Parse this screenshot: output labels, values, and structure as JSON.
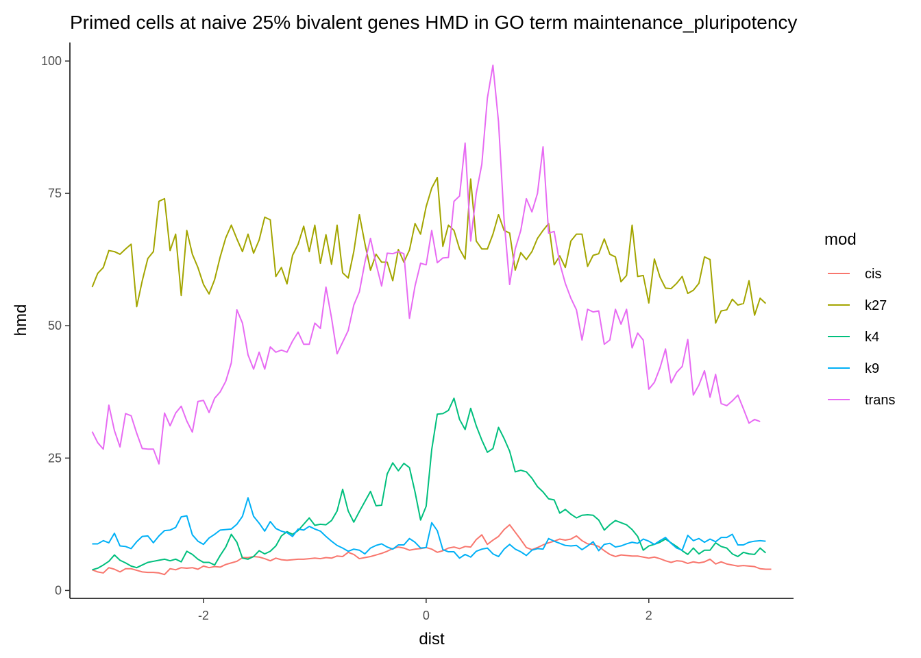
{
  "chart_data": {
    "type": "line",
    "title": "Primed cells at naive 25% bivalent genes HMD in GO term maintenance_pluripotency",
    "xlabel": "dist",
    "ylabel": "hmd",
    "xlim": [
      -3.2,
      3.3
    ],
    "ylim": [
      -1.5,
      103.5
    ],
    "x_ticks": [
      -2,
      0,
      2
    ],
    "y_ticks": [
      0,
      25,
      50,
      75,
      100
    ],
    "x_tick_labels": [
      "-2",
      "0",
      "2"
    ],
    "y_tick_labels": [
      "0",
      "25",
      "50",
      "75",
      "100"
    ],
    "grid": false,
    "legend": {
      "title": "mod",
      "position": "right"
    },
    "x_start": -3.0,
    "x_step": 0.05,
    "series": [
      {
        "name": "cis",
        "color": "#F8766D",
        "values": [
          3.9,
          3.5,
          3.3,
          4.3,
          4.0,
          3.5,
          4.1,
          4.1,
          3.8,
          3.5,
          3.4,
          3.4,
          3.3,
          3.0,
          4.1,
          3.9,
          4.3,
          4.2,
          4.3,
          4.0,
          4.6,
          4.3,
          4.5,
          4.4,
          4.9,
          5.2,
          5.5,
          6.2,
          6.2,
          6.4,
          6.3,
          6.0,
          5.6,
          6.1,
          5.8,
          5.7,
          5.8,
          5.9,
          5.9,
          6.0,
          6.1,
          6.0,
          6.2,
          6.1,
          6.5,
          6.4,
          7.2,
          6.8,
          6.0,
          6.2,
          6.4,
          6.7,
          7.0,
          7.4,
          7.9,
          8.2,
          8.0,
          7.6,
          7.8,
          7.9,
          8.1,
          7.8,
          7.2,
          7.5,
          8.0,
          8.2,
          7.9,
          8.3,
          8.2,
          9.6,
          10.5,
          8.7,
          9.5,
          10.2,
          11.5,
          12.4,
          11.0,
          9.6,
          8.1,
          7.7,
          8.1,
          8.6,
          9.0,
          9.3,
          9.7,
          9.5,
          9.7,
          10.3,
          9.4,
          8.8,
          8.7,
          8.3,
          7.5,
          6.8,
          6.4,
          6.7,
          6.6,
          6.5,
          6.5,
          6.3,
          6.1,
          6.3,
          6.0,
          5.6,
          5.3,
          5.6,
          5.5,
          5.1,
          5.4,
          5.2,
          5.4,
          5.9,
          5.0,
          5.4,
          5.0,
          4.8,
          4.6,
          4.7,
          4.6,
          4.5,
          4.1,
          4.0,
          4.0
        ]
      },
      {
        "name": "k27",
        "color": "#A3A500",
        "values": [
          57.3,
          59.9,
          61.0,
          64.2,
          64.0,
          63.5,
          64.5,
          65.4,
          53.6,
          58.5,
          62.7,
          64.0,
          73.5,
          74.0,
          64.2,
          67.3,
          55.7,
          68.0,
          63.5,
          61.0,
          57.8,
          56.0,
          58.7,
          63.0,
          66.6,
          69.0,
          66.4,
          64.0,
          67.3,
          63.7,
          66.2,
          70.5,
          70.0,
          59.3,
          61.0,
          57.9,
          63.3,
          65.4,
          68.8,
          64.0,
          69.0,
          61.8,
          67.2,
          61.6,
          69.0,
          60.0,
          59.0,
          64.0,
          71.0,
          65.5,
          60.5,
          63.5,
          62.0,
          62.0,
          58.5,
          64.4,
          62.0,
          64.3,
          69.3,
          67.3,
          72.5,
          76.0,
          78.0,
          65.0,
          69.0,
          68.0,
          64.5,
          62.6,
          77.7,
          66.0,
          64.5,
          64.5,
          67.3,
          71.0,
          68.0,
          67.5,
          60.5,
          63.8,
          62.5,
          64.0,
          66.5,
          68.0,
          69.3,
          61.5,
          63.2,
          61.0,
          66.0,
          67.3,
          67.3,
          61.2,
          63.3,
          63.6,
          66.4,
          63.5,
          63.0,
          58.3,
          59.5,
          69.0,
          59.3,
          59.5,
          54.3,
          62.6,
          59.2,
          57.1,
          57.0,
          58.0,
          59.3,
          56.1,
          56.7,
          58.0,
          63.0,
          62.5,
          50.5,
          52.8,
          53.0,
          55.0,
          53.9,
          54.2,
          58.5,
          52.0,
          55.2,
          54.2
        ]
      },
      {
        "name": "k4",
        "color": "#00BF7D",
        "values": [
          3.9,
          4.2,
          4.8,
          5.5,
          6.7,
          5.7,
          5.2,
          4.6,
          4.3,
          4.8,
          5.3,
          5.5,
          5.7,
          5.9,
          5.6,
          5.9,
          5.4,
          7.4,
          6.8,
          5.9,
          5.3,
          5.3,
          4.8,
          6.6,
          8.2,
          10.6,
          9.1,
          6.1,
          5.9,
          6.4,
          7.5,
          6.9,
          7.4,
          8.4,
          10.3,
          11.1,
          10.6,
          11.3,
          12.5,
          13.7,
          12.3,
          12.5,
          12.4,
          13.2,
          15.0,
          19.1,
          15.0,
          12.9,
          14.9,
          16.8,
          18.7,
          16.0,
          16.1,
          22.0,
          24.1,
          22.6,
          24.0,
          23.2,
          18.6,
          13.3,
          15.9,
          26.6,
          33.3,
          33.4,
          34.0,
          36.3,
          32.3,
          30.4,
          34.4,
          31.1,
          28.4,
          26.1,
          26.8,
          30.8,
          28.7,
          26.3,
          22.4,
          22.7,
          22.4,
          21.2,
          19.6,
          18.6,
          17.3,
          17.1,
          14.6,
          15.3,
          14.4,
          13.7,
          14.2,
          14.3,
          14.2,
          13.3,
          11.4,
          12.4,
          13.2,
          12.8,
          12.4,
          11.5,
          10.2,
          7.6,
          8.4,
          8.7,
          9.1,
          9.7,
          9.0,
          8.3,
          7.5,
          6.8,
          8.0,
          6.9,
          7.6,
          7.6,
          9.0,
          8.3,
          8.0,
          6.9,
          6.4,
          7.2,
          6.9,
          6.8,
          8.0,
          7.1
        ]
      },
      {
        "name": "k9",
        "color": "#00B0F6",
        "values": [
          8.8,
          8.8,
          9.4,
          9.0,
          10.8,
          8.4,
          8.3,
          7.9,
          9.2,
          10.2,
          10.3,
          9.0,
          10.3,
          11.3,
          11.4,
          11.9,
          13.9,
          14.1,
          10.5,
          9.3,
          8.7,
          9.9,
          10.6,
          11.4,
          11.5,
          11.6,
          12.5,
          14.0,
          17.5,
          14.0,
          12.7,
          11.2,
          13.0,
          11.7,
          11.2,
          10.9,
          10.2,
          11.6,
          11.4,
          12.1,
          11.6,
          11.2,
          10.2,
          9.3,
          8.5,
          8.0,
          7.4,
          7.8,
          7.6,
          6.9,
          8.0,
          8.5,
          8.8,
          8.2,
          7.8,
          8.6,
          8.6,
          9.8,
          9.1,
          8.0,
          8.1,
          12.8,
          11.3,
          7.7,
          7.3,
          7.3,
          6.1,
          6.8,
          6.3,
          7.4,
          7.8,
          8.0,
          6.9,
          6.4,
          7.8,
          8.7,
          7.8,
          7.3,
          6.6,
          7.6,
          7.9,
          7.8,
          9.8,
          9.3,
          8.9,
          8.5,
          8.4,
          8.5,
          7.7,
          8.4,
          9.2,
          7.5,
          8.7,
          8.9,
          8.2,
          8.4,
          8.8,
          9.1,
          8.9,
          9.7,
          9.3,
          8.7,
          9.4,
          10.0,
          8.9,
          8.0,
          7.6,
          10.4,
          9.4,
          9.8,
          9.1,
          9.7,
          9.2,
          10.0,
          10.0,
          10.6,
          8.6,
          8.6,
          9.1,
          9.3,
          9.4,
          9.3
        ]
      },
      {
        "name": "trans",
        "color": "#E76BF3",
        "values": [
          30.0,
          27.9,
          26.7,
          35.0,
          30.2,
          27.1,
          33.4,
          33.0,
          29.7,
          26.8,
          26.7,
          26.7,
          23.9,
          33.5,
          31.1,
          33.5,
          34.8,
          32.0,
          29.9,
          35.7,
          35.9,
          33.6,
          36.3,
          37.5,
          39.5,
          43.0,
          53.0,
          50.5,
          44.5,
          41.8,
          45.0,
          41.8,
          46.0,
          45.0,
          45.4,
          45.0,
          47.1,
          48.8,
          46.5,
          46.5,
          50.5,
          49.5,
          57.3,
          51.5,
          44.7,
          46.9,
          49.1,
          53.9,
          56.4,
          62.0,
          66.5,
          61.7,
          57.5,
          63.7,
          63.6,
          64.0,
          63.6,
          51.4,
          57.5,
          61.8,
          61.5,
          68.0,
          61.9,
          62.8,
          62.9,
          73.5,
          74.5,
          84.5,
          66.0,
          75.0,
          80.5,
          93.0,
          99.2,
          88.5,
          70.0,
          57.8,
          64.5,
          68.0,
          74.0,
          71.5,
          75.0,
          83.8,
          67.5,
          67.8,
          61.8,
          58.0,
          55.2,
          53.0,
          47.3,
          53.1,
          52.6,
          52.8,
          46.5,
          47.3,
          53.1,
          50.3,
          53.1,
          45.8,
          48.6,
          47.3,
          38.0,
          39.3,
          42.0,
          45.6,
          39.2,
          41.2,
          42.3,
          47.4,
          36.9,
          38.8,
          41.5,
          36.5,
          40.8,
          35.3,
          34.9,
          35.8,
          36.9,
          34.3,
          31.6,
          32.3,
          31.9
        ]
      }
    ]
  }
}
